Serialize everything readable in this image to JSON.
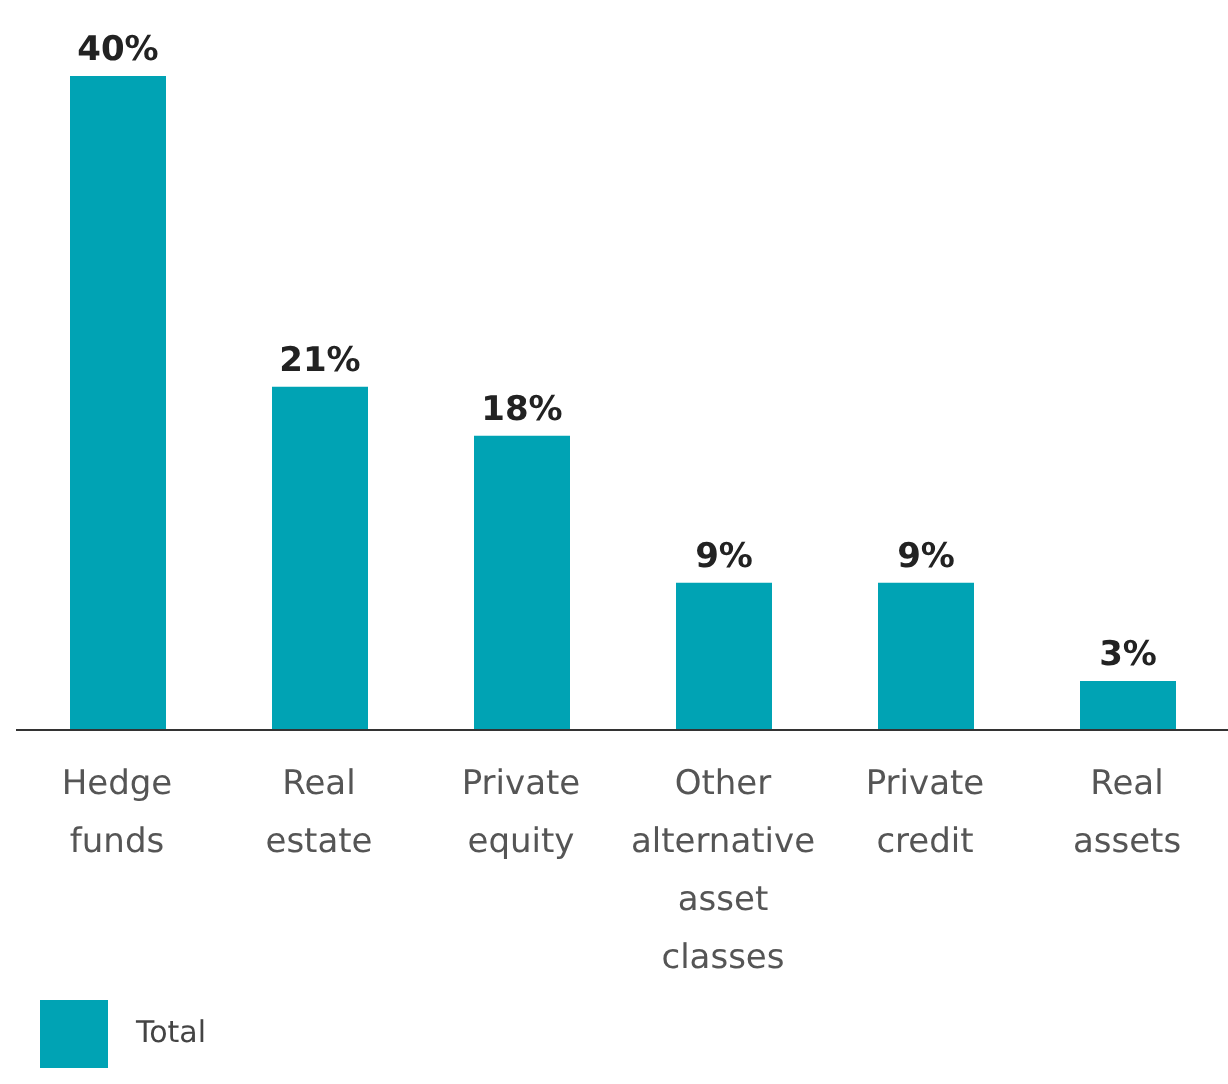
{
  "chart_data": {
    "type": "bar",
    "categories": [
      "Hedge funds",
      "Real estate",
      "Private equity",
      "Other alternative asset classes",
      "Private credit",
      "Real assets"
    ],
    "series": [
      {
        "name": "Total",
        "color": "#00a3b4",
        "values": [
          40,
          21,
          18,
          9,
          9,
          3
        ],
        "value_labels": [
          "40%",
          "21%",
          "18%",
          "9%",
          "9%",
          "3%"
        ]
      }
    ],
    "legend": "bottom left",
    "grid": false
  }
}
